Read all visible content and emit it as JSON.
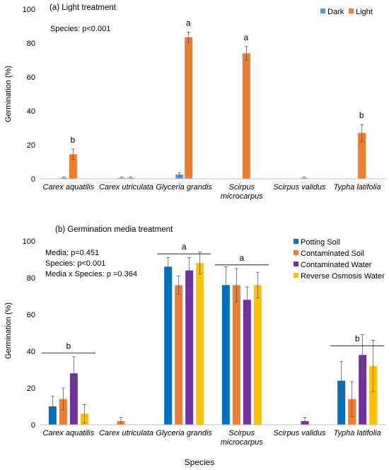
{
  "chart_data": [
    {
      "type": "bar",
      "title": "(a) Light treatment",
      "ylabel": "Germination (%)",
      "xlabel": "",
      "ylim": [
        0,
        100
      ],
      "yticks": [
        0,
        20,
        40,
        60,
        80,
        100
      ],
      "categories": [
        [
          "Carex aquatilis"
        ],
        [
          "Carex utriculata"
        ],
        [
          "Glyceria grandis"
        ],
        [
          "Scirpus",
          "microcarpus"
        ],
        [
          "Scirpus validus"
        ],
        [
          "Typha latifolia"
        ]
      ],
      "series": [
        {
          "name": "Dark",
          "color": "#5B9BD5",
          "values": [
            0.5,
            0.5,
            2.5,
            0,
            0,
            0
          ],
          "errors": [
            0.5,
            0.5,
            1.0,
            0,
            0,
            0
          ]
        },
        {
          "name": "Light",
          "color": "#ED7D31",
          "values": [
            14.5,
            0.5,
            83.5,
            74,
            0.5,
            27
          ],
          "errors": [
            3.0,
            0.5,
            3.0,
            4.0,
            0.5,
            5.0
          ]
        }
      ],
      "annotations": [
        "Species: p<0.001"
      ],
      "group_letters": [
        "b",
        "",
        "a",
        "a",
        "",
        "b"
      ],
      "legend": {
        "placement": "top-right"
      },
      "grid": false
    },
    {
      "type": "bar",
      "title": "(b) Germination media treatment",
      "ylabel": "Germination (%)",
      "xlabel": "Species",
      "ylim": [
        0,
        100
      ],
      "yticks": [
        0,
        20,
        40,
        60,
        80,
        100
      ],
      "categories": [
        [
          "Carex aquatilis"
        ],
        [
          "Carex utriculata"
        ],
        [
          "Glyceria grandis"
        ],
        [
          "Scirpus",
          "microcarpus"
        ],
        [
          "Scirpus validus"
        ],
        [
          "Typha latifolia"
        ]
      ],
      "series": [
        {
          "name": "Potting Soil",
          "color": "#0070C0",
          "values": [
            10,
            0,
            86,
            76,
            0,
            24
          ],
          "errors": [
            5.5,
            0,
            5,
            10,
            0,
            10.5
          ]
        },
        {
          "name": "Contaminated Soil",
          "color": "#ED7D31",
          "values": [
            14,
            2,
            76,
            76,
            0,
            14
          ],
          "errors": [
            6,
            2,
            5,
            9,
            0,
            9.5
          ]
        },
        {
          "name": "Contaminated Water",
          "color": "#7030A0",
          "values": [
            28,
            0,
            84,
            68,
            2,
            38
          ],
          "errors": [
            9,
            0,
            7,
            7,
            2,
            11
          ]
        },
        {
          "name": "Reverse Osmosis Water",
          "color": "#FFC000",
          "values": [
            6,
            0,
            88,
            76,
            0,
            32
          ],
          "errors": [
            5,
            0,
            6,
            7,
            0,
            14
          ]
        }
      ],
      "annotations": [
        "Media: p=0.451",
        "Species: p<0.001",
        "Media x Species: p =0.364"
      ],
      "group_letters": [
        "b",
        "",
        "a",
        "a",
        "",
        "b"
      ],
      "group_line_levels": [
        39,
        null,
        93,
        87,
        null,
        43
      ],
      "legend": {
        "placement": "top-right"
      },
      "grid": false
    }
  ]
}
